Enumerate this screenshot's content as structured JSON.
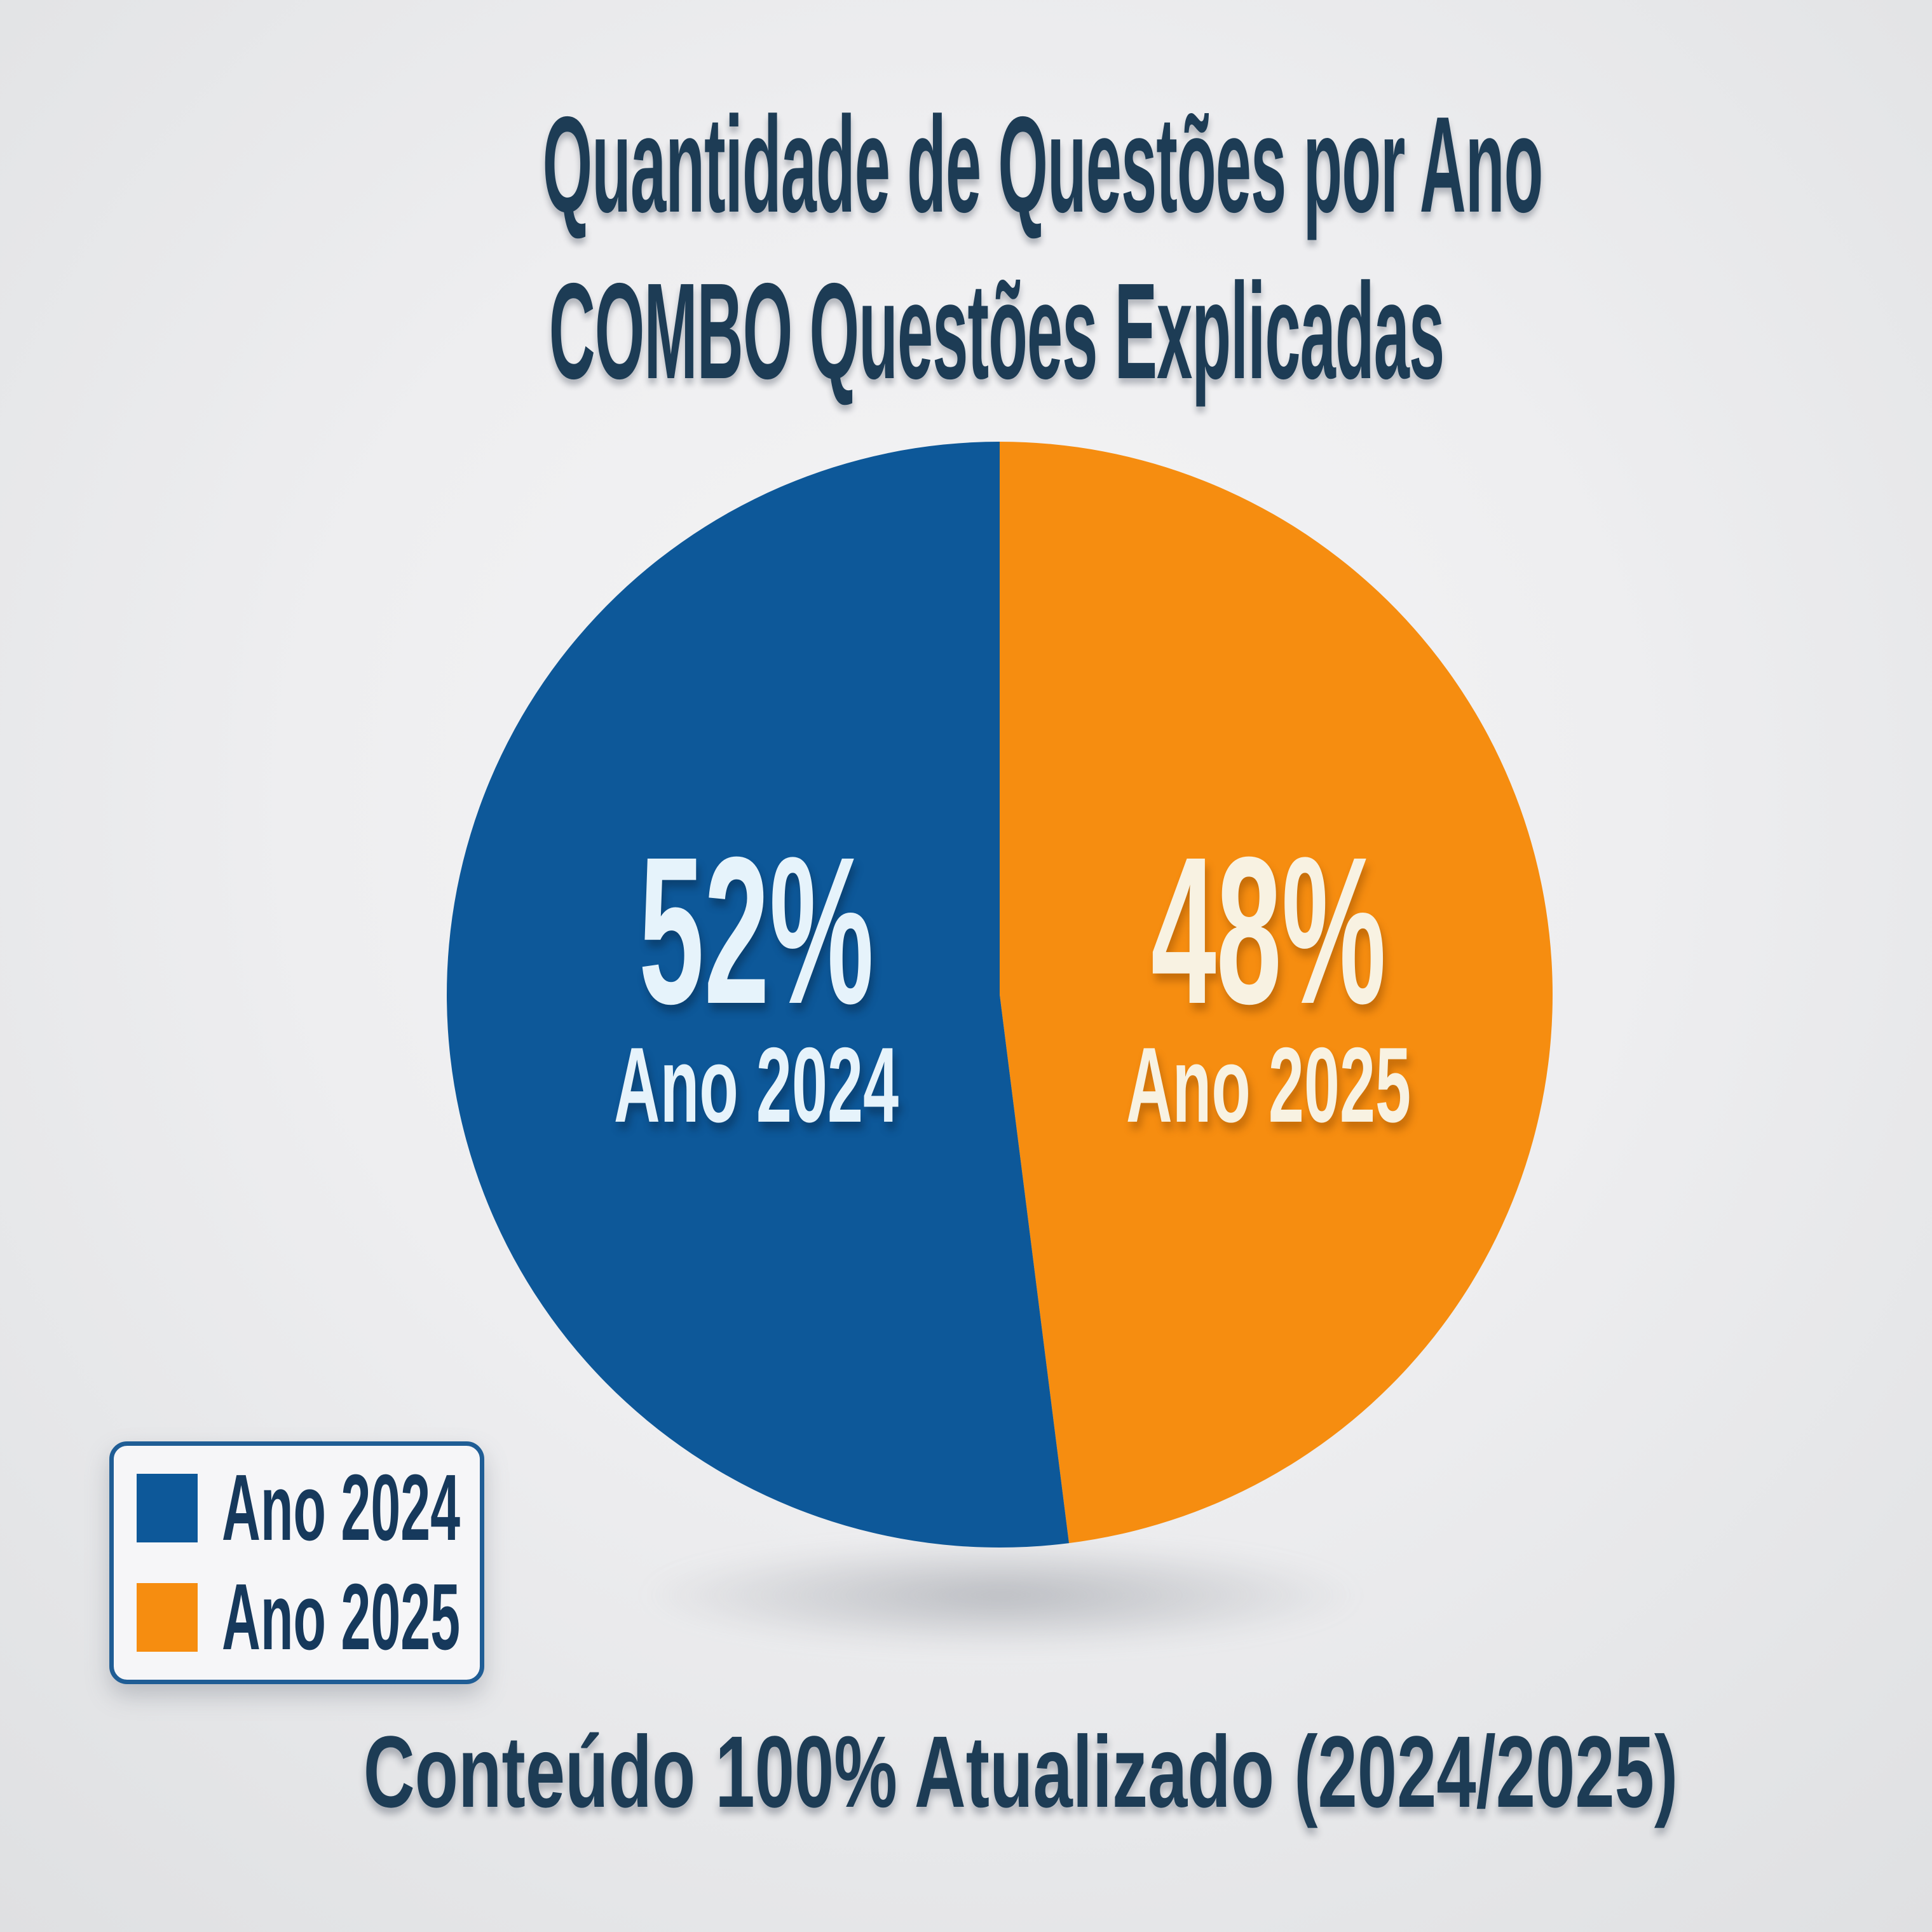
{
  "title": {
    "line1": "Quantidade de Questões por Ano",
    "line2": "COMBO Questões Explicadas",
    "color": "#1d3c55"
  },
  "chart_data": {
    "type": "pie",
    "title": "Quantidade de Questões por Ano — COMBO Questões Explicadas",
    "categories": [
      "Ano 2024",
      "Ano 2025"
    ],
    "values": [
      52,
      48
    ],
    "unit": "%",
    "colors": [
      "#0d5899",
      "#f68d10"
    ],
    "slice_labels": [
      "52%",
      "48%"
    ],
    "slice_sublabels": [
      "Ano 2024",
      "Ano 2025"
    ],
    "slice_label_colors": [
      "#e6f3fb",
      "#f8f2e2"
    ],
    "start": "top",
    "first_slice_clockwise_from_top": "Ano 2025",
    "legend_position": "bottom-left",
    "grid": false
  },
  "legend": {
    "items": [
      {
        "label": "Ano 2024",
        "color": "#0d5899"
      },
      {
        "label": "Ano 2025",
        "color": "#f68d10"
      }
    ],
    "background": "#f6f6f8",
    "border_color": "#1f5d95",
    "text_color": "#16395c"
  },
  "caption": {
    "text": "Conteúdo 100% Atualizado (2024/2025)",
    "color": "#1d3c55"
  },
  "background": {
    "center": "#f5f5f6",
    "edge": "#dfe0e2"
  }
}
